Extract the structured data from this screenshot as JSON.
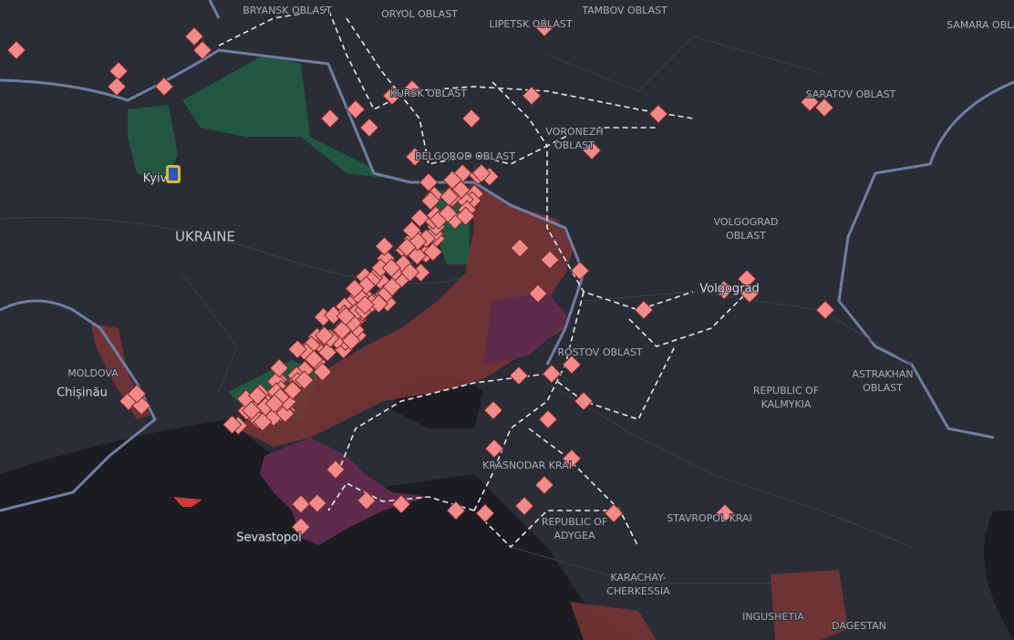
{
  "labels": [
    "BRYANSK OBLAST",
    "ORYOL OBLAST",
    "LIPETSK OBLAST",
    "TAMBOV OBLAST",
    "SAMARA OBLAST",
    "KURSK OBLAST",
    "VORONEZH OBLAST",
    "BELGOROD OBLAST",
    "SARATOV OBLAST",
    "VOLGOGRAD OBLAST",
    "Volgograd",
    "UKRAINE",
    "Kyiv",
    "MOLDOVA",
    "Chișinău",
    "ROSTOV OBLAST",
    "REPUBLIC OF KALMYKIA",
    "ASTRAKHAN OBLAST",
    "KRASNODAR KRAI",
    "REPUBLIC OF ADYGEA",
    "STAVROPOL KRAI",
    "KARACHAY-CHERKESSIA",
    "INGUSHETIA",
    "DAGESTAN",
    "Sevastopol"
  ]
}
